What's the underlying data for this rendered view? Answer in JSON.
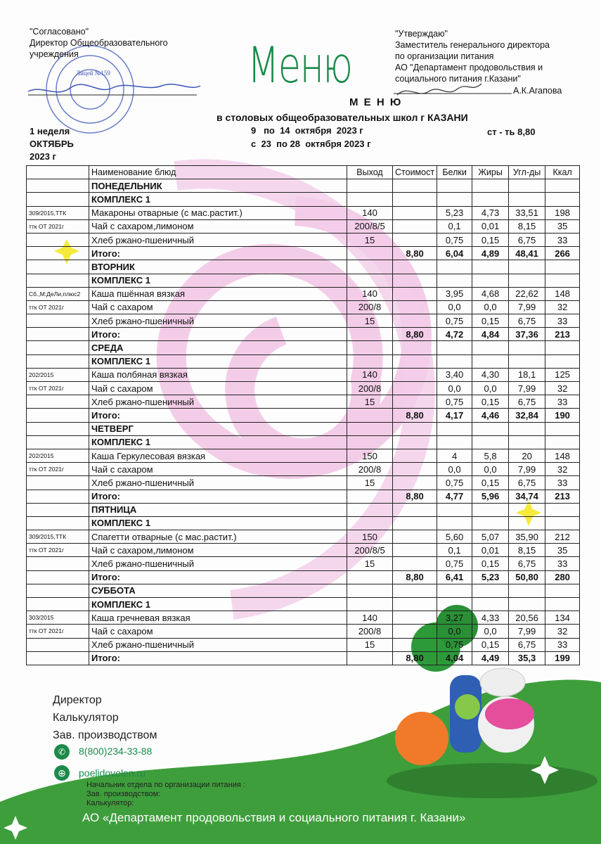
{
  "approval_left": {
    "line1": "\"Согласовано\"",
    "line2": "Директор Общеобразовательного",
    "line3": "учреждения",
    "stamp_text": "Лицей №159"
  },
  "approval_right": {
    "line1": "\"Утверждаю\"",
    "line2": "Заместитель генерального директора",
    "line3": "по организации питания",
    "line4": "АО \"Департамент продовольствия и",
    "line5": "социального питания г.Казани\"",
    "signer": "А.К.Агапова"
  },
  "logo_title": "Меню",
  "title": "М Е Н Ю",
  "subtitle": "в столовых общеобразовательных школ г КАЗАНИ",
  "period1": "9   по  14  октября  2023 г",
  "period2": "с  23  по 28  октября 2023 г",
  "week": "1 неделя",
  "month": "ОКТЯБРЬ",
  "year": "2023 г",
  "cost_note": "ст - ть 8,80",
  "table": {
    "headers": [
      "",
      "Наименование блюд",
      "Выход",
      "Стоимост",
      "Белки",
      "Жиры",
      "Угл-ды",
      "Ккал"
    ],
    "days": [
      {
        "day": "ПОНЕДЕЛЬНИК",
        "complex": "КОМПЛЕКС 1",
        "items": [
          [
            "309/2015,ТТК",
            "Макароны отварные (с мас.растит.)",
            "140",
            "",
            "5,23",
            "4,73",
            "33,51",
            "198"
          ],
          [
            "ттк ОТ 2021г",
            "Чай с сахаром,лимоном",
            "200/8/5",
            "",
            "0,1",
            "0,01",
            "8,15",
            "35"
          ],
          [
            "",
            "Хлеб ржано-пшеничный",
            "15",
            "",
            "0,75",
            "0,15",
            "6,75",
            "33"
          ]
        ],
        "total": [
          "",
          "Итого:",
          "",
          "8,80",
          "6,04",
          "4,89",
          "48,41",
          "266"
        ]
      },
      {
        "day": "ВТОРНИК",
        "complex": "КОМПЛЕКС 1",
        "items": [
          [
            "Сб.,М:ДеЛи,плюс2",
            "Каша пшённая вязкая",
            "140",
            "",
            "3,95",
            "4,68",
            "22,62",
            "148"
          ],
          [
            "ттк ОТ 2021г",
            "Чай с сахаром",
            "200/8",
            "",
            "0,0",
            "0,0",
            "7,99",
            "32"
          ],
          [
            "",
            "Хлеб ржано-пшеничный",
            "15",
            "",
            "0,75",
            "0,15",
            "6,75",
            "33"
          ]
        ],
        "total": [
          "",
          "Итого:",
          "",
          "8,80",
          "4,72",
          "4,84",
          "37,36",
          "213"
        ]
      },
      {
        "day": "СРЕДА",
        "complex": "КОМПЛЕКС 1",
        "items": [
          [
            "202/2015",
            "Каша  полбяная вязкая",
            "140",
            "",
            "3,40",
            "4,30",
            "18,1",
            "125"
          ],
          [
            "ттк ОТ 2021г",
            "Чай с сахаром",
            "200/8",
            "",
            "0,0",
            "0,0",
            "7,99",
            "32"
          ],
          [
            "",
            "Хлеб ржано-пшеничный",
            "15",
            "",
            "0,75",
            "0,15",
            "6,75",
            "33"
          ]
        ],
        "total": [
          "",
          "Итого:",
          "",
          "8,80",
          "4,17",
          "4,46",
          "32,84",
          "190"
        ]
      },
      {
        "day": "ЧЕТВЕРГ",
        "complex": "КОМПЛЕКС 1",
        "items": [
          [
            "202/2015",
            "Каша  Геркулесовая вязкая",
            "150",
            "",
            "4",
            "5,8",
            "20",
            "148"
          ],
          [
            "ттк ОТ 2021г",
            "Чай с сахаром",
            "200/8",
            "",
            "0,0",
            "0,0",
            "7,99",
            "32"
          ],
          [
            "",
            "Хлеб ржано-пшеничный",
            "15",
            "",
            "0,75",
            "0,15",
            "6,75",
            "33"
          ]
        ],
        "total": [
          "",
          "Итого:",
          "",
          "8,80",
          "4,77",
          "5,96",
          "34,74",
          "213"
        ]
      },
      {
        "day": "ПЯТНИЦА",
        "complex": "КОМПЛЕКС 1",
        "items": [
          [
            "309/2015,ТТК",
            "Спагетти отварные (с мас.растит.)",
            "150",
            "",
            "5,60",
            "5,07",
            "35,90",
            "212"
          ],
          [
            "ттк ОТ 2021г",
            "Чай с сахаром,лимоном",
            "200/8/5",
            "",
            "0,1",
            "0,01",
            "8,15",
            "35"
          ],
          [
            "",
            "Хлеб ржано-пшеничный",
            "15",
            "",
            "0,75",
            "0,15",
            "6,75",
            "33"
          ]
        ],
        "total": [
          "",
          "Итого:",
          "",
          "8,80",
          "6,41",
          "5,23",
          "50,80",
          "280"
        ]
      },
      {
        "day": "СУББОТА",
        "complex": "КОМПЛЕКС 1",
        "items": [
          [
            "303/2015",
            "Каша гречневая вязкая",
            "140",
            "",
            "3,27",
            "4,33",
            "20,56",
            "134"
          ],
          [
            "ттк ОТ 2021г",
            "Чай с сахаром",
            "200/8",
            "",
            "0,0",
            "0,0",
            "7,99",
            "32"
          ],
          [
            "",
            "Хлеб ржано-пшеничный",
            "15",
            "",
            "0,75",
            "0,15",
            "6,75",
            "33"
          ]
        ],
        "total": [
          "",
          "Итого:",
          "",
          "8,80",
          "4,04",
          "4,49",
          "35,3",
          "199"
        ]
      }
    ]
  },
  "footer": {
    "line1": "Директор",
    "line2": "Калькулятор",
    "line3": "Зав. производством",
    "phone": "8(800)234-33-88",
    "website": "poelidovolen.ru",
    "sign1": "Начальник отдела по организации питания :",
    "sign2": "Зав. производством:",
    "sign3": "Калькулятор:",
    "company": "АО «Департамент продовольствия и социального питания г. Казани»"
  },
  "colors": {
    "brand_green": "#1b8a4a",
    "wave_green": "#3f9e3c",
    "pink": "#f2c6e4"
  }
}
